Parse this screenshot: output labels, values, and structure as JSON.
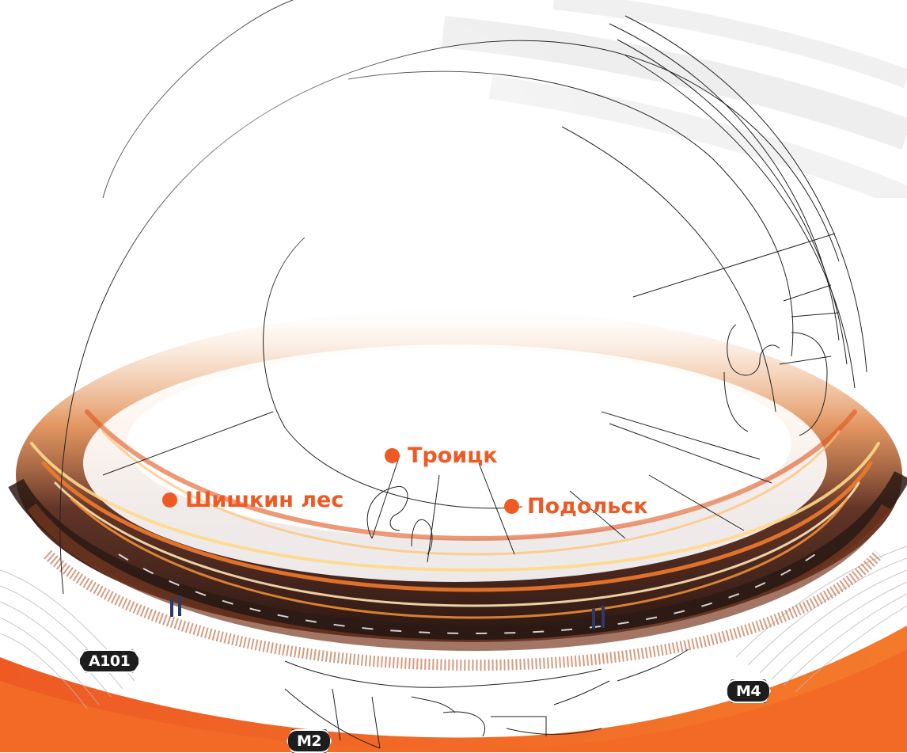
{
  "map": {
    "colors": {
      "accent": "#ee5a24",
      "road_dark": "#1d1d1d",
      "lines": "#222222",
      "light_streak_orange": "#f07a2c",
      "light_streak_yellow": "#ffd88a"
    },
    "cities": [
      {
        "id": "troitsk",
        "label": "Троицк"
      },
      {
        "id": "shishkin-les",
        "label": "Шишкин лес"
      },
      {
        "id": "podolsk",
        "label": "Подольск"
      }
    ],
    "roads": [
      {
        "id": "a101",
        "label": "А101"
      },
      {
        "id": "m2",
        "label": "М2"
      },
      {
        "id": "m4",
        "label": "М4"
      }
    ]
  }
}
